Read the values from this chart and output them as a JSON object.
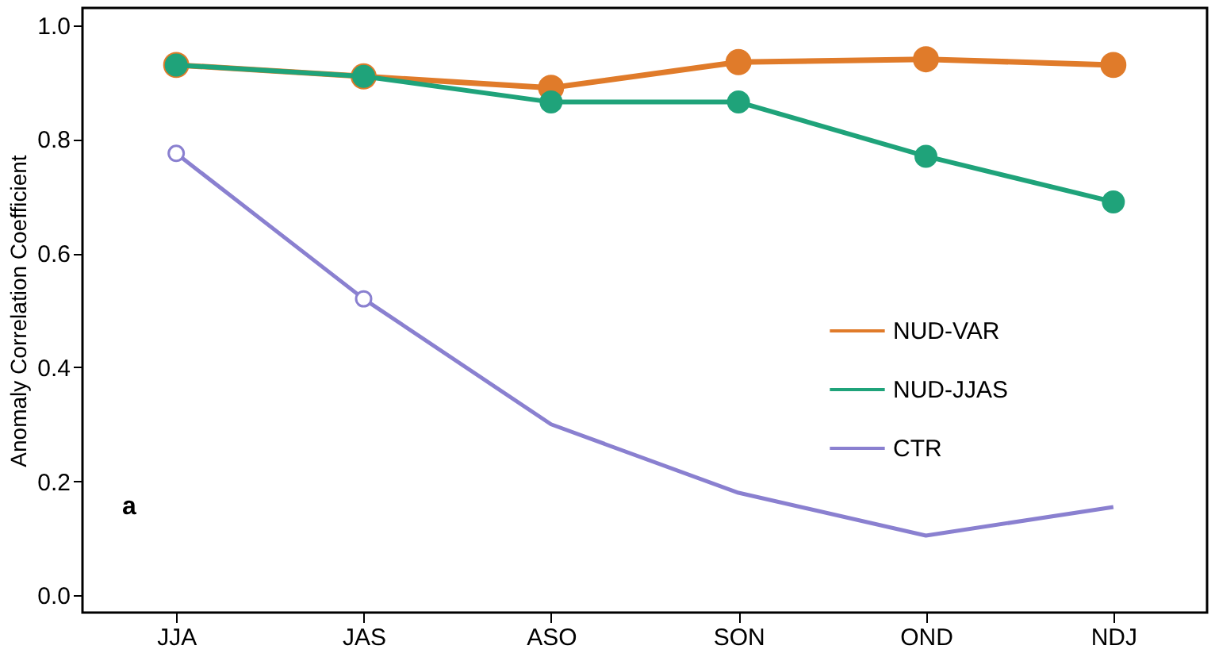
{
  "chart_data": {
    "type": "line",
    "ylabel": "Anomaly Correlation Coefficient",
    "categories": [
      "JJA",
      "JAS",
      "ASO",
      "SON",
      "OND",
      "NDJ"
    ],
    "ylim": [
      -0.03,
      1.03
    ],
    "yticks": [
      {
        "value": 0,
        "label": "0.0"
      },
      0.2,
      0.4,
      0.6,
      0.8,
      {
        "value": 1,
        "label": "1.0"
      }
    ],
    "series": [
      {
        "name": "NUD-VAR",
        "color": "#e07b2a",
        "marker": "circle",
        "values": [
          0.93,
          0.91,
          0.89,
          0.935,
          0.94,
          0.93
        ]
      },
      {
        "name": "NUD-JJAS",
        "color": "#1fa37a",
        "marker": "circle",
        "values": [
          0.93,
          0.91,
          0.865,
          0.865,
          0.77,
          0.69
        ]
      },
      {
        "name": "CTR",
        "color": "#8a80d0",
        "marker": "none",
        "values": [
          0.775,
          0.52,
          0.3,
          0.18,
          0.105,
          0.155
        ]
      },
      {
        "type": "scatter",
        "color": "#8a80d0",
        "x": [
          "JJA",
          "JAS"
        ],
        "values": [
          0.775,
          0.52
        ]
      }
    ],
    "legend": "right",
    "grid": false,
    "annotations": [
      "a"
    ]
  }
}
